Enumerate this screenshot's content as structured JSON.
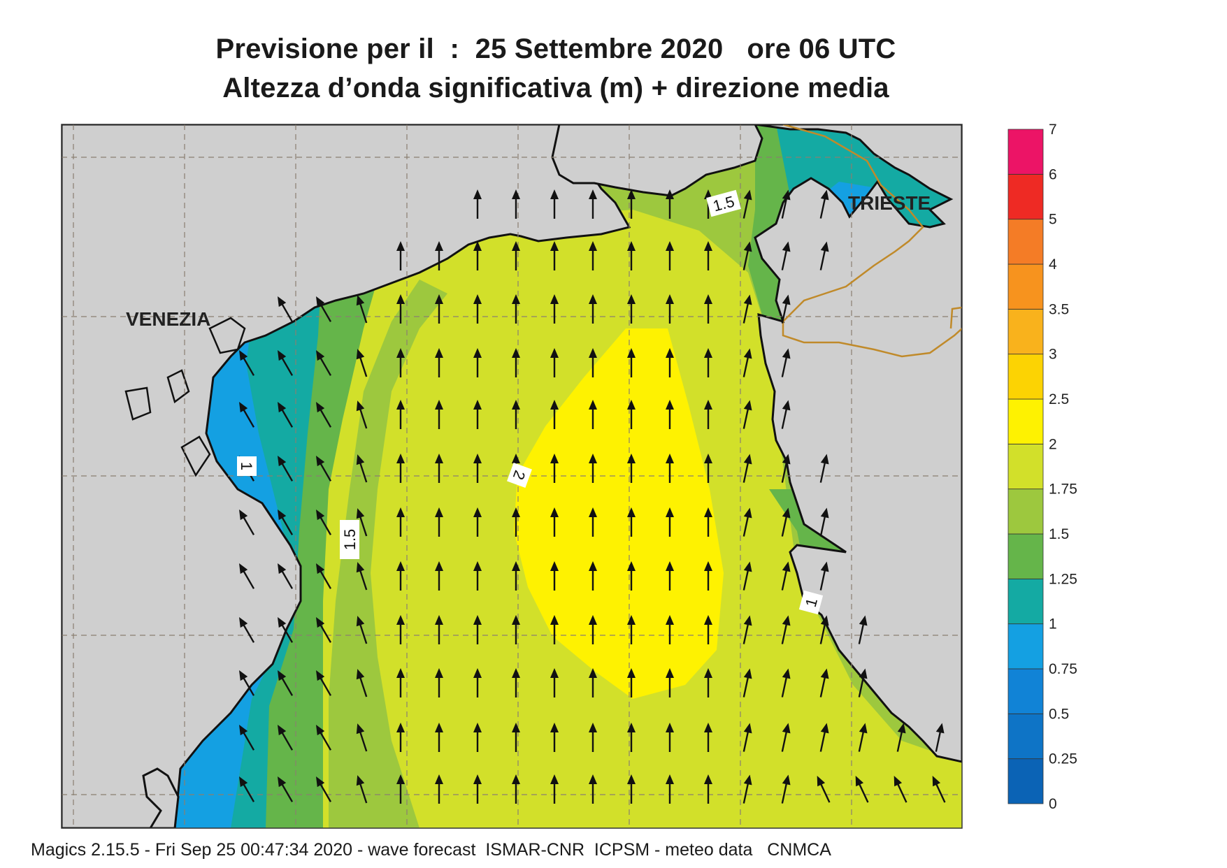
{
  "title": {
    "line1": "Previsione per il  :  25 Settembre 2020   ore 06 UTC",
    "line2": "Altezza d’onda significativa (m) + direzione media"
  },
  "places": {
    "venezia": "VENEZIA",
    "trieste": "TRIESTE"
  },
  "colorbar": {
    "levels": [
      "0",
      "0.25",
      "0.5",
      "0.75",
      "1",
      "1.25",
      "1.5",
      "1.75",
      "2",
      "2.5",
      "3",
      "3.5",
      "4",
      "5",
      "6",
      "7"
    ],
    "colors": [
      "#0b63b5",
      "#0e74c6",
      "#1183d6",
      "#14a0e2",
      "#14aaa3",
      "#65b54a",
      "#9dc83e",
      "#d2e02a",
      "#fef201",
      "#fcd303",
      "#f9b21c",
      "#f7931e",
      "#f47c26",
      "#ee2a24",
      "#ec1466"
    ]
  },
  "contour_labels": [
    "1.5",
    "2",
    "1",
    "1.5",
    "1"
  ],
  "footer": "Magics 2.15.5 - Fri Sep 25 00:47:34 2020 - wave forecast  ISMAR-CNR  ICPSM - meteo data   CNMCA",
  "colors": {
    "land": "#cfcfcf",
    "coast": "#111111",
    "border": "#c08a2a",
    "grid": "#8a7f70"
  },
  "arrows": {
    "dominant_direction": "north",
    "icon": "wave-direction-arrow-icon"
  }
}
